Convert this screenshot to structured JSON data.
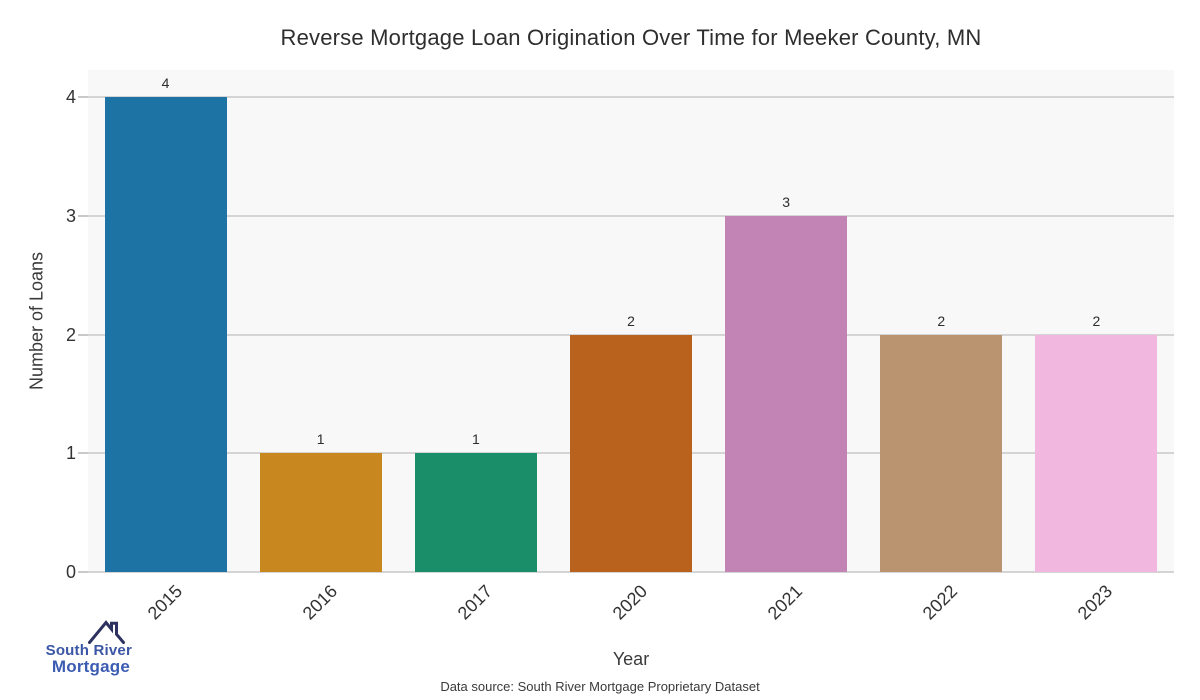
{
  "title": "Reverse Mortgage Loan Origination Over Time for Meeker County, MN",
  "chart_data": {
    "type": "bar",
    "categories": [
      "2015",
      "2016",
      "2017",
      "2020",
      "2021",
      "2022",
      "2023"
    ],
    "values": [
      4,
      1,
      1,
      2,
      3,
      2,
      2
    ],
    "bar_colors": [
      "#1d73a3",
      "#c8871f",
      "#198e69",
      "#b9621e",
      "#c184b5",
      "#ba9370",
      "#f2b7de"
    ],
    "title": "Reverse Mortgage Loan Origination Over Time for Meeker County, MN",
    "xlabel": "Year",
    "ylabel": "Number of Loans",
    "yticks": [
      0,
      1,
      2,
      3,
      4
    ],
    "ylim": [
      0,
      4.23
    ],
    "grid": "horizontal",
    "legend": "none",
    "plot_bg": "#f8f8f8",
    "grid_color": "#d4d4d4"
  },
  "footer": {
    "source_note": "Data source: South River Mortgage Proprietary Dataset"
  },
  "logo": {
    "line1": "South River",
    "line2": "Mortgage",
    "text_color1": "#3a56a5",
    "text_color2": "#3c5cb3",
    "roof_color": "#2d3261"
  }
}
